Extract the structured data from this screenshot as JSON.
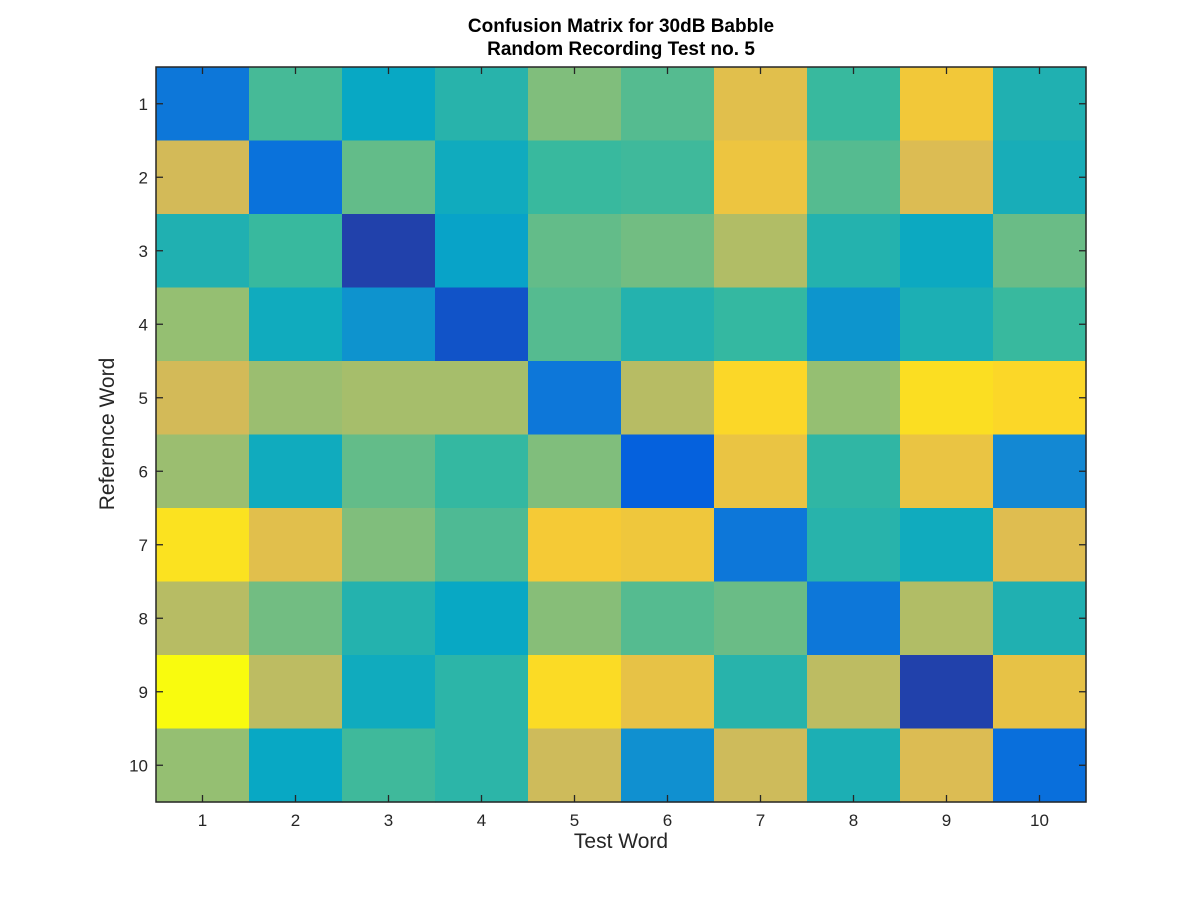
{
  "chart_data": {
    "type": "heatmap",
    "title": [
      "Confusion Matrix for 30dB Babble",
      "Random Recording Test no. 5"
    ],
    "xlabel": "Test Word",
    "ylabel": "Reference Word",
    "x_categories": [
      "1",
      "2",
      "3",
      "4",
      "5",
      "6",
      "7",
      "8",
      "9",
      "10"
    ],
    "y_categories": [
      "1",
      "2",
      "3",
      "4",
      "5",
      "6",
      "7",
      "8",
      "9",
      "10"
    ],
    "colormap": "parula",
    "color_range": [
      0,
      1
    ],
    "values": [
      [
        0.2,
        0.52,
        0.38,
        0.46,
        0.6,
        0.54,
        0.78,
        0.5,
        0.84,
        0.44
      ],
      [
        0.74,
        0.18,
        0.56,
        0.4,
        0.5,
        0.51,
        0.82,
        0.54,
        0.76,
        0.42
      ],
      [
        0.44,
        0.5,
        0.05,
        0.36,
        0.56,
        0.58,
        0.68,
        0.45,
        0.39,
        0.57
      ],
      [
        0.63,
        0.4,
        0.3,
        0.09,
        0.54,
        0.45,
        0.49,
        0.31,
        0.43,
        0.5
      ],
      [
        0.74,
        0.64,
        0.66,
        0.66,
        0.2,
        0.69,
        0.9,
        0.63,
        0.92,
        0.9
      ],
      [
        0.64,
        0.4,
        0.56,
        0.49,
        0.6,
        0.12,
        0.81,
        0.48,
        0.81,
        0.26
      ],
      [
        0.93,
        0.78,
        0.6,
        0.53,
        0.85,
        0.83,
        0.2,
        0.46,
        0.4,
        0.77
      ],
      [
        0.69,
        0.58,
        0.45,
        0.38,
        0.61,
        0.54,
        0.57,
        0.2,
        0.68,
        0.44
      ],
      [
        1.0,
        0.7,
        0.4,
        0.47,
        0.91,
        0.8,
        0.46,
        0.7,
        0.05,
        0.8
      ],
      [
        0.63,
        0.38,
        0.51,
        0.47,
        0.73,
        0.29,
        0.73,
        0.43,
        0.76,
        0.17
      ]
    ],
    "grid": false,
    "colorbar": false
  },
  "colors": {
    "axis": "#262626",
    "background": "#ffffff"
  }
}
